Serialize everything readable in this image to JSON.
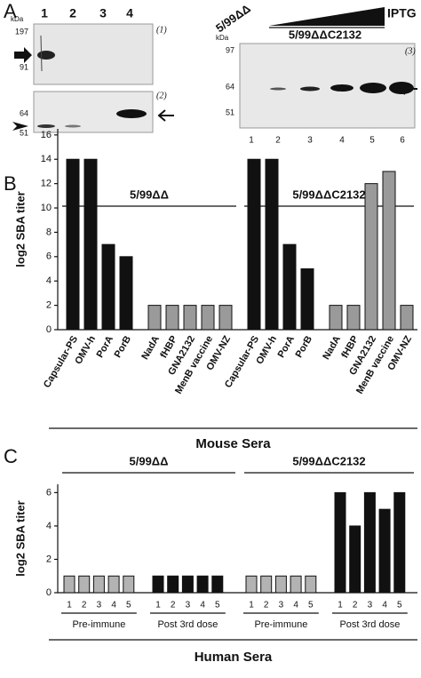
{
  "panel_a": {
    "label": "A",
    "left_blot": {
      "unit": "kDa",
      "lanes": [
        "1",
        "2",
        "3",
        "4"
      ],
      "markers_top": [
        "197",
        "91"
      ],
      "markers_bottom": [
        "64",
        "51"
      ],
      "tags": [
        "(1)",
        "(2)"
      ]
    },
    "right_blot": {
      "strain": "5/99ΔΔ",
      "inducer": "IPTG",
      "construct": "5/99ΔΔC2132",
      "unit": "kDa",
      "markers": [
        "97",
        "64",
        "51"
      ],
      "tag": "(3)",
      "lanes": [
        "1",
        "2",
        "3",
        "4",
        "5",
        "6"
      ]
    }
  },
  "chart_data": [
    {
      "type": "bar",
      "panel": "B",
      "ylabel": "log2 SBA titer",
      "xlabel": "Mouse Sera",
      "ylim": [
        0,
        16.5
      ],
      "yticks": [
        0,
        2,
        4,
        6,
        8,
        10,
        12,
        14,
        16
      ],
      "groups": [
        {
          "name": "5/99ΔΔ",
          "categories": [
            "Capsular-PS",
            "OMV-h",
            "PorA",
            "PorB",
            "NadA",
            "fHBP",
            "GNA2132",
            "MenB vaccine",
            "OMV-NZ"
          ],
          "values": [
            14,
            14,
            7,
            6,
            2,
            2,
            2,
            2,
            2
          ],
          "colors": [
            "#111111",
            "#111111",
            "#111111",
            "#111111",
            "#9a9a9a",
            "#9a9a9a",
            "#9a9a9a",
            "#9a9a9a",
            "#9a9a9a"
          ]
        },
        {
          "name": "5/99ΔΔC2132",
          "categories": [
            "Capsular-PS",
            "OMV-h",
            "PorA",
            "PorB",
            "NadA",
            "fHBP",
            "GNA2132",
            "MenB vaccine",
            "OMV-NZ"
          ],
          "values": [
            14,
            14,
            7,
            5,
            2,
            2,
            12,
            13,
            2
          ],
          "colors": [
            "#111111",
            "#111111",
            "#111111",
            "#111111",
            "#9a9a9a",
            "#9a9a9a",
            "#9a9a9a",
            "#9a9a9a",
            "#9a9a9a"
          ]
        }
      ]
    },
    {
      "type": "bar",
      "panel": "C",
      "ylabel": "log2 SBA titer",
      "xlabel": "Human Sera",
      "ylim": [
        0,
        6.5
      ],
      "yticks": [
        0,
        2,
        4,
        6
      ],
      "groups": [
        {
          "name": "5/99ΔΔ",
          "subgroups": [
            {
              "name": "Pre-immune",
              "color": "#b3b3b3",
              "categories": [
                "1",
                "2",
                "3",
                "4",
                "5"
              ],
              "values": [
                1,
                1,
                1,
                1,
                1
              ]
            },
            {
              "name": "Post 3rd dose",
              "color": "#111111",
              "categories": [
                "1",
                "2",
                "3",
                "4",
                "5"
              ],
              "values": [
                1,
                1,
                1,
                1,
                1
              ]
            }
          ]
        },
        {
          "name": "5/99ΔΔC2132",
          "subgroups": [
            {
              "name": "Pre-immune",
              "color": "#b3b3b3",
              "categories": [
                "1",
                "2",
                "3",
                "4",
                "5"
              ],
              "values": [
                1,
                1,
                1,
                1,
                1
              ]
            },
            {
              "name": "Post 3rd dose",
              "color": "#111111",
              "categories": [
                "1",
                "2",
                "3",
                "4",
                "5"
              ],
              "values": [
                6,
                4,
                6,
                5,
                6
              ]
            }
          ]
        }
      ]
    }
  ]
}
